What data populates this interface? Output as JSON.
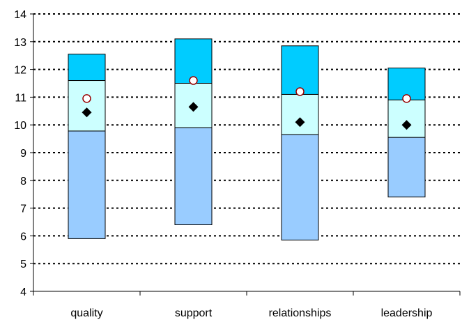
{
  "chart_data": {
    "type": "floating-stacked-bar",
    "categories": [
      "quality",
      "support",
      "relationships",
      "leadership"
    ],
    "ylim": [
      4,
      14
    ],
    "yticks": [
      4,
      5,
      6,
      7,
      8,
      9,
      10,
      11,
      12,
      13,
      14
    ],
    "grid": "horizontal dotted",
    "legend": "none",
    "series": [
      {
        "role": "lower band",
        "color": "#99ccff",
        "low": [
          5.9,
          6.4,
          5.85,
          7.4
        ],
        "high": [
          9.78,
          9.9,
          9.65,
          9.55
        ]
      },
      {
        "role": "middle band",
        "color": "#ccffff",
        "low": [
          9.78,
          9.9,
          9.65,
          9.55
        ],
        "high": [
          11.6,
          11.5,
          11.1,
          10.9
        ]
      },
      {
        "role": "upper band",
        "color": "#00ccff",
        "low": [
          11.6,
          11.5,
          11.1,
          10.9
        ],
        "high": [
          12.55,
          13.1,
          12.85,
          12.05
        ]
      }
    ],
    "markers": {
      "diamond": {
        "color": "#000000",
        "values": [
          10.45,
          10.65,
          10.1,
          10.0
        ]
      },
      "circle": {
        "fill": "#ffffff",
        "stroke": "#990000",
        "values": [
          10.95,
          11.6,
          11.2,
          10.95
        ]
      }
    }
  }
}
